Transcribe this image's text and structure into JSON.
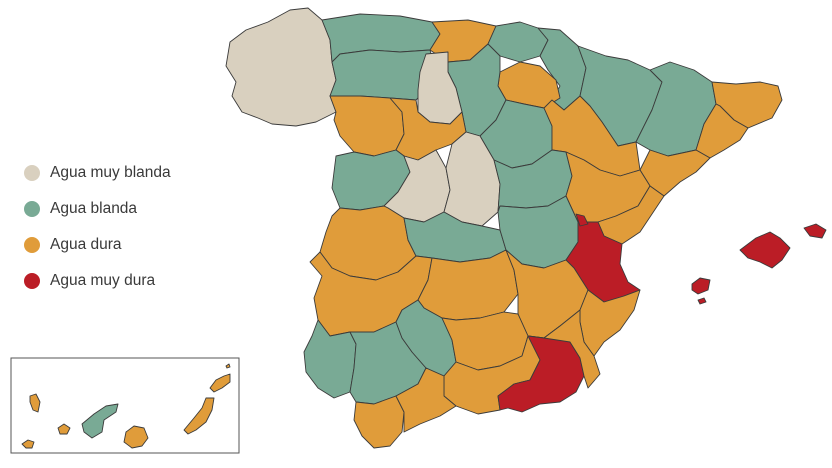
{
  "legend": {
    "items": [
      {
        "key": "muy_blanda",
        "label": "Agua muy blanda",
        "color": "#d9d0bf"
      },
      {
        "key": "blanda",
        "label": "Agua blanda",
        "color": "#79aa95"
      },
      {
        "key": "dura",
        "label": "Agua dura",
        "color": "#e09c3a"
      },
      {
        "key": "muy_dura",
        "label": "Agua muy dura",
        "color": "#bb1d26"
      }
    ]
  },
  "map": {
    "borders": "#3b3b3b",
    "regions": [
      {
        "name": "Galicia",
        "category": "muy_blanda"
      },
      {
        "name": "Burgos",
        "category": "muy_blanda"
      },
      {
        "name": "Ávila-Segovia",
        "category": "muy_blanda"
      },
      {
        "name": "Madrid",
        "category": "muy_blanda"
      },
      {
        "name": "Asturias",
        "category": "blanda"
      },
      {
        "name": "Cantabria",
        "category": "dura"
      },
      {
        "name": "País Vasco",
        "category": "blanda"
      },
      {
        "name": "Navarra",
        "category": "blanda"
      },
      {
        "name": "La Rioja",
        "category": "dura"
      },
      {
        "name": "Huesca",
        "category": "blanda"
      },
      {
        "name": "Lleida",
        "category": "blanda"
      },
      {
        "name": "Girona",
        "category": "dura"
      },
      {
        "name": "Barcelona",
        "category": "dura"
      },
      {
        "name": "Tarragona",
        "category": "dura"
      },
      {
        "name": "León",
        "category": "blanda"
      },
      {
        "name": "Palencia",
        "category": "blanda"
      },
      {
        "name": "Soria",
        "category": "blanda"
      },
      {
        "name": "Zaragoza",
        "category": "dura"
      },
      {
        "name": "Zamora",
        "category": "dura"
      },
      {
        "name": "Valladolid",
        "category": "dura"
      },
      {
        "name": "Salamanca",
        "category": "blanda"
      },
      {
        "name": "Guadalajara",
        "category": "blanda"
      },
      {
        "name": "Teruel",
        "category": "dura"
      },
      {
        "name": "Castellón",
        "category": "dura"
      },
      {
        "name": "Cáceres",
        "category": "dura"
      },
      {
        "name": "Toledo",
        "category": "blanda"
      },
      {
        "name": "Cuenca",
        "category": "blanda"
      },
      {
        "name": "Valencia",
        "category": "muy_dura"
      },
      {
        "name": "Badajoz",
        "category": "dura"
      },
      {
        "name": "Ciudad Real",
        "category": "dura"
      },
      {
        "name": "Albacete",
        "category": "dura"
      },
      {
        "name": "Alicante",
        "category": "dura"
      },
      {
        "name": "Huelva",
        "category": "blanda"
      },
      {
        "name": "Sevilla",
        "category": "blanda"
      },
      {
        "name": "Córdoba",
        "category": "blanda"
      },
      {
        "name": "Jaén",
        "category": "dura"
      },
      {
        "name": "Granada",
        "category": "dura"
      },
      {
        "name": "Murcia",
        "category": "muy_dura"
      },
      {
        "name": "Almería",
        "category": "dura"
      },
      {
        "name": "Cádiz",
        "category": "dura"
      },
      {
        "name": "Málaga",
        "category": "dura"
      },
      {
        "name": "Mallorca",
        "category": "muy_dura"
      },
      {
        "name": "Menorca",
        "category": "muy_dura"
      },
      {
        "name": "Ibiza",
        "category": "muy_dura"
      },
      {
        "name": "Formentera",
        "category": "muy_dura"
      },
      {
        "name": "La Palma",
        "category": "dura"
      },
      {
        "name": "El Hierro",
        "category": "dura"
      },
      {
        "name": "La Gomera",
        "category": "dura"
      },
      {
        "name": "Tenerife",
        "category": "blanda"
      },
      {
        "name": "Gran Canaria",
        "category": "dura"
      },
      {
        "name": "Fuerteventura",
        "category": "dura"
      },
      {
        "name": "Lanzarote",
        "category": "dura"
      }
    ]
  }
}
